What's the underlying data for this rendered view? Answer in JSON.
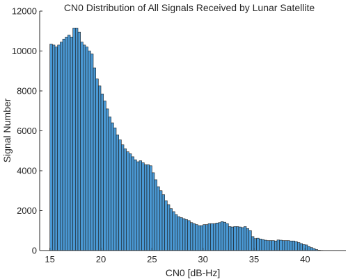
{
  "chart_data": {
    "type": "bar",
    "title": "CN0 Distribution of All Signals Received by Lunar Satellite",
    "xlabel": "CN0 [dB-Hz]",
    "ylabel": "Signal Number",
    "xlim": [
      14,
      44
    ],
    "ylim": [
      0,
      12000
    ],
    "xticks": [
      15,
      20,
      25,
      30,
      35,
      40
    ],
    "yticks": [
      0,
      2000,
      4000,
      6000,
      8000,
      10000,
      12000
    ],
    "grid": false,
    "bin_start": 15,
    "bin_width": 0.25,
    "bar_color": "#4a98d3",
    "edge_color": "#1a1a1a",
    "values": [
      10350,
      10300,
      10200,
      10300,
      10450,
      10600,
      10700,
      10800,
      10700,
      11150,
      11150,
      10950,
      10450,
      10300,
      10200,
      10000,
      9850,
      9150,
      8600,
      8250,
      7850,
      7500,
      7100,
      6700,
      6400,
      6150,
      5800,
      5550,
      5300,
      5100,
      4950,
      4850,
      4700,
      4550,
      4450,
      4500,
      4400,
      4300,
      4300,
      4250,
      3900,
      3550,
      3200,
      3000,
      2800,
      2500,
      2300,
      2100,
      1950,
      1800,
      1700,
      1650,
      1600,
      1550,
      1500,
      1400,
      1350,
      1300,
      1250,
      1250,
      1300,
      1300,
      1350,
      1350,
      1350,
      1380,
      1400,
      1450,
      1420,
      1350,
      1200,
      1180,
      1200,
      1200,
      1180,
      1150,
      1200,
      1100,
      1000,
      700,
      600,
      620,
      580,
      550,
      520,
      500,
      500,
      500,
      480,
      530,
      520,
      500,
      500,
      500,
      480,
      480,
      450,
      400,
      350,
      300,
      280,
      200,
      150,
      100,
      50,
      20,
      10
    ]
  }
}
